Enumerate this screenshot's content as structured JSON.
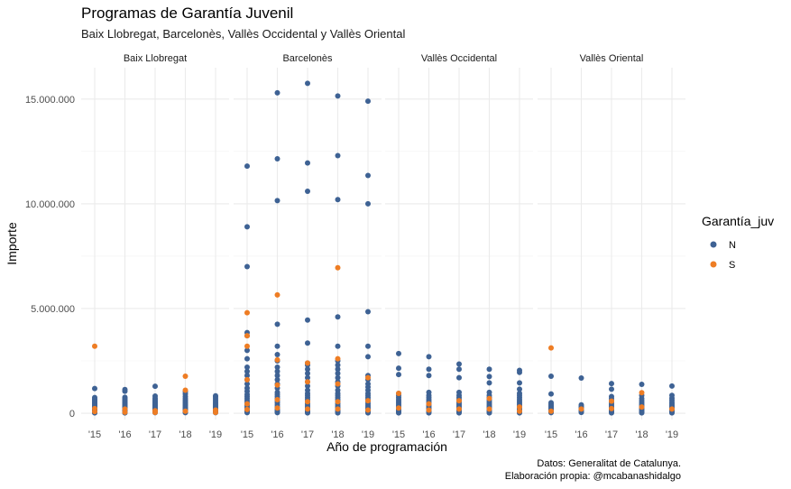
{
  "chart_data": {
    "type": "scatter",
    "title": "Programas de Garantía Juvenil",
    "subtitle": "Baix Llobregat, Barcelonès, Vallès Occidental y Vallès Oriental",
    "xlabel": "Año de programación",
    "ylabel": "Importe",
    "caption": [
      "Datos: Generalitat de Catalunya.",
      "Elaboración propia: @mcabanashidalgo"
    ],
    "categories": [
      "'15",
      "'16",
      "'17",
      "'18",
      "'19"
    ],
    "ylim": [
      -300000,
      16500000
    ],
    "yticks": [
      0,
      5000000,
      10000000,
      15000000
    ],
    "ytick_labels": [
      "0",
      "5.000.000",
      "10.000.000",
      "15.000.000"
    ],
    "legend": {
      "title": "Garantía_juv",
      "position": "right",
      "entries": [
        {
          "label": "N",
          "color": "#3e6294"
        },
        {
          "label": "S",
          "color": "#ee7d24"
        }
      ]
    },
    "panels": [
      {
        "name": "Baix Llobregat",
        "series": [
          {
            "name": "N",
            "color": "#3e6294",
            "points": {
              "'15": [
                1180000,
                750000,
                680000,
                620000,
                560000,
                500000,
                450000,
                400000,
                350000,
                300000,
                260000,
                220000,
                180000,
                150000,
                120000,
                90000,
                60000,
                40000,
                20000
              ],
              "'16": [
                1130000,
                1050000,
                760000,
                700000,
                640000,
                580000,
                520000,
                470000,
                420000,
                370000,
                320000,
                280000,
                240000,
                200000,
                160000,
                120000,
                80000,
                50000,
                20000
              ],
              "'17": [
                1290000,
                820000,
                720000,
                650000,
                580000,
                520000,
                460000,
                400000,
                350000,
                300000,
                250000,
                200000,
                150000,
                100000,
                60000,
                30000
              ],
              "'18": [
                1030000,
                920000,
                800000,
                700000,
                620000,
                550000,
                480000,
                420000,
                360000,
                300000,
                250000,
                200000,
                150000,
                100000,
                60000,
                30000
              ],
              "'19": [
                830000,
                780000,
                700000,
                620000,
                540000,
                470000,
                400000,
                340000,
                280000,
                220000,
                160000,
                110000,
                60000,
                30000
              ]
            }
          },
          {
            "name": "S",
            "color": "#ee7d24",
            "points": {
              "'15": [
                3200000,
                220000,
                80000
              ],
              "'16": [
                200000,
                50000
              ],
              "'17": [
                120000,
                40000
              ],
              "'18": [
                1770000,
                1100000,
                100000
              ],
              "'19": [
                150000,
                40000
              ]
            }
          }
        ]
      },
      {
        "name": "Barcelonès",
        "series": [
          {
            "name": "N",
            "color": "#3e6294",
            "points": {
              "'15": [
                11800000,
                8900000,
                7000000,
                3850000,
                3700000,
                3000000,
                2600000,
                2200000,
                2000000,
                1800000,
                1600000,
                1400000,
                1200000,
                1050000,
                900000,
                800000,
                700000,
                600000,
                500000,
                420000,
                350000,
                280000,
                210000,
                150000,
                100000,
                60000,
                30000
              ],
              "'16": [
                15300000,
                12150000,
                10150000,
                4250000,
                3200000,
                2800000,
                2500000,
                2200000,
                2000000,
                1800000,
                1600000,
                1400000,
                1200000,
                1000000,
                900000,
                800000,
                700000,
                600000,
                500000,
                400000,
                300000,
                220000,
                150000,
                100000,
                60000,
                30000
              ],
              "'17": [
                15750000,
                11950000,
                10600000,
                4450000,
                3350000,
                2400000,
                2300000,
                2100000,
                1900000,
                1700000,
                1500000,
                1300000,
                1100000,
                950000,
                850000,
                750000,
                650000,
                550000,
                450000,
                350000,
                270000,
                200000,
                140000,
                90000,
                50000,
                20000
              ],
              "'18": [
                15150000,
                12300000,
                10200000,
                4600000,
                3200000,
                2500000,
                2300000,
                2100000,
                1900000,
                1700000,
                1500000,
                1300000,
                1100000,
                950000,
                850000,
                750000,
                650000,
                550000,
                450000,
                350000,
                270000,
                200000,
                140000,
                90000,
                50000,
                20000
              ],
              "'19": [
                14900000,
                11350000,
                10000000,
                4850000,
                3200000,
                2700000,
                1800000,
                1600000,
                1400000,
                1250000,
                1100000,
                950000,
                850000,
                750000,
                650000,
                550000,
                450000,
                350000,
                270000,
                200000,
                140000,
                90000,
                50000,
                20000
              ]
            }
          },
          {
            "name": "S",
            "color": "#ee7d24",
            "points": {
              "'15": [
                4800000,
                3700000,
                3200000,
                1600000,
                450000,
                180000
              ],
              "'16": [
                5650000,
                2550000,
                1350000,
                650000,
                250000
              ],
              "'17": [
                2400000,
                1500000,
                550000,
                200000
              ],
              "'18": [
                6950000,
                2600000,
                1400000,
                550000,
                200000
              ],
              "'19": [
                1700000,
                600000,
                150000
              ]
            }
          }
        ]
      },
      {
        "name": "Vallès Occidental",
        "series": [
          {
            "name": "N",
            "color": "#3e6294",
            "points": {
              "'15": [
                2850000,
                2150000,
                1850000,
                950000,
                850000,
                750000,
                650000,
                560000,
                480000,
                400000,
                330000,
                260000,
                200000,
                140000,
                90000,
                50000,
                20000
              ],
              "'16": [
                2700000,
                2100000,
                1800000,
                1000000,
                850000,
                750000,
                650000,
                560000,
                480000,
                400000,
                330000,
                260000,
                200000,
                140000,
                90000,
                50000,
                20000
              ],
              "'17": [
                2350000,
                2100000,
                1700000,
                1000000,
                850000,
                750000,
                650000,
                560000,
                480000,
                400000,
                330000,
                260000,
                200000,
                140000,
                90000,
                50000,
                20000
              ],
              "'18": [
                2100000,
                1750000,
                1450000,
                1000000,
                850000,
                750000,
                650000,
                560000,
                480000,
                400000,
                330000,
                260000,
                200000,
                140000,
                90000,
                50000,
                20000
              ],
              "'19": [
                2050000,
                1950000,
                1450000,
                1150000,
                950000,
                850000,
                750000,
                650000,
                560000,
                480000,
                400000,
                330000,
                260000,
                200000,
                140000,
                90000,
                50000,
                20000
              ]
            }
          },
          {
            "name": "S",
            "color": "#ee7d24",
            "points": {
              "'15": [
                950000,
                250000
              ],
              "'16": [
                450000,
                150000
              ],
              "'17": [
                600000,
                200000
              ],
              "'18": [
                700000,
                200000
              ],
              "'19": [
                300000,
                100000
              ]
            }
          }
        ]
      },
      {
        "name": "Vallès Oriental",
        "series": [
          {
            "name": "N",
            "color": "#3e6294",
            "points": {
              "'15": [
                1770000,
                920000,
                500000,
                430000,
                370000,
                310000,
                250000,
                200000,
                150000,
                100000,
                60000,
                30000
              ],
              "'16": [
                1680000,
                400000,
                340000,
                280000,
                220000,
                170000,
                120000,
                80000,
                40000
              ],
              "'17": [
                1420000,
                1150000,
                800000,
                700000,
                600000,
                500000,
                420000,
                340000,
                270000,
                200000,
                140000,
                90000,
                50000,
                20000
              ],
              "'18": [
                1380000,
                850000,
                700000,
                600000,
                500000,
                420000,
                340000,
                270000,
                200000,
                140000,
                90000,
                50000,
                20000
              ],
              "'19": [
                1300000,
                850000,
                720000,
                620000,
                520000,
                440000,
                360000,
                290000,
                220000,
                160000,
                110000,
                60000,
                20000
              ]
            }
          },
          {
            "name": "S",
            "color": "#ee7d24",
            "points": {
              "'15": [
                3120000,
                100000
              ],
              "'16": [
                200000
              ],
              "'17": [
                580000,
                220000
              ],
              "'18": [
                980000,
                300000
              ],
              "'19": [
                200000
              ]
            }
          }
        ]
      }
    ]
  }
}
